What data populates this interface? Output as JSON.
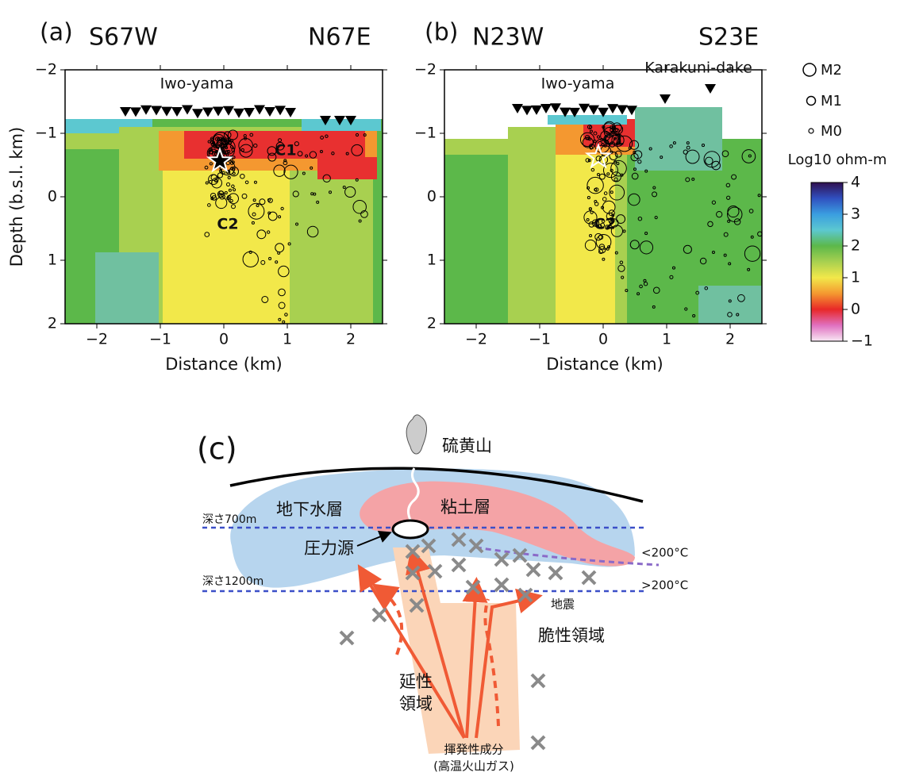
{
  "panels": [
    {
      "label": "(a)",
      "left_direction": "S67W",
      "right_direction": "N67E",
      "annotations": [
        "Iwo-yama"
      ],
      "zones": [
        "C1",
        "C2"
      ],
      "xlabel": "Distance (km)",
      "ylabel": "Depth (b.s.l. km)",
      "xticks": [
        "−2",
        "−1",
        "0",
        "1",
        "2"
      ],
      "yticks": [
        "−2",
        "−1",
        "0",
        "1",
        "2"
      ]
    },
    {
      "label": "(b)",
      "left_direction": "N23W",
      "right_direction": "S23E",
      "annotations": [
        "Iwo-yama",
        "Karakuni-dake"
      ],
      "zones": [
        "C1",
        "C2"
      ],
      "xlabel": "Distance (km)",
      "xticks": [
        "−2",
        "−1",
        "0",
        "1",
        "2"
      ],
      "yticks": [
        "−2",
        "−1",
        "0",
        "1",
        "2"
      ]
    }
  ],
  "legend": {
    "magnitudes": [
      "M2",
      "M1",
      "M0"
    ],
    "colorbar_title": "Log10 ohm-m",
    "colorbar_ticks": [
      "4",
      "3",
      "2",
      "1",
      "0",
      "−1"
    ]
  },
  "schematic": {
    "label": "(c)",
    "mountain": "硫黄山",
    "aquifer": "地下水層",
    "clay": "粘土層",
    "depth_700": "深さ700m",
    "pressure_source": "圧力源",
    "below_200": "<200°C",
    "depth_1200": "深さ1200m",
    "above_200": ">200°C",
    "earthquake": "地震",
    "brittle": "脆性領域",
    "ductile": [
      "延性",
      "領域"
    ],
    "volatiles": [
      "揮発性成分",
      "(高温火山ガス)"
    ]
  }
}
